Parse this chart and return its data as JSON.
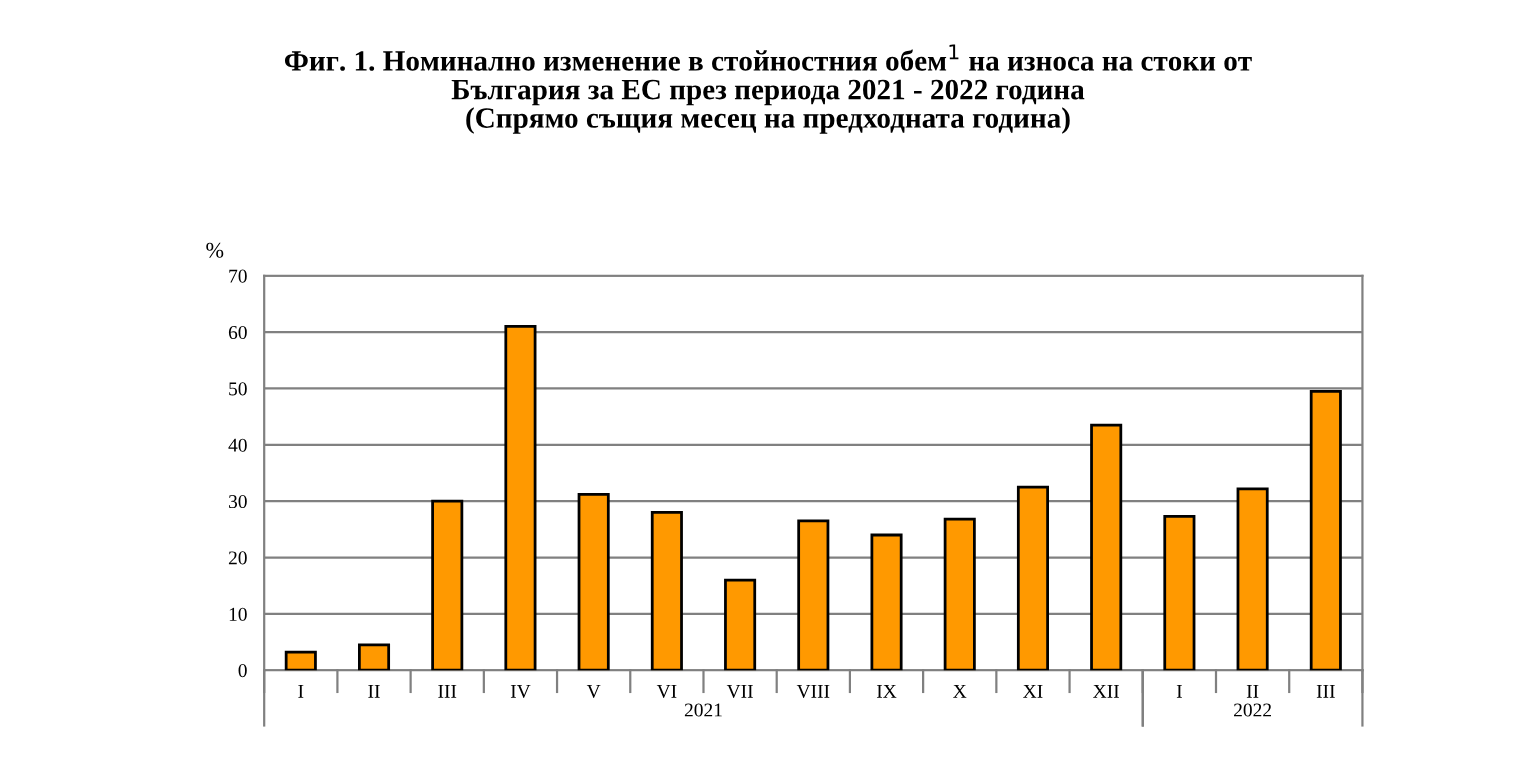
{
  "chart_data": {
    "type": "bar",
    "title": "Фиг. 1. Номинално изменение в стойностния обем$^{1}$ на износа на стоки от\nБългария за ЕС през периода 2021 - 2022 година\n(Спрямо същия месец на предходната година)",
    "ylabel": "%",
    "categories": [
      "I",
      "II",
      "III",
      "IV",
      "V",
      "VI",
      "VII",
      "VIII",
      "IX",
      "X",
      "XI",
      "XII",
      "I",
      "II",
      "III"
    ],
    "series": [
      {
        "color": "#ff9900",
        "values": [
          3.2,
          4.5,
          30,
          61,
          31.2,
          28,
          16,
          26.5,
          24,
          26.8,
          32.5,
          43.5,
          27.3,
          32.2,
          49.5
        ]
      }
    ],
    "annotations": [
      "2021",
      "2022"
    ],
    "ylim": [
      0,
      70
    ],
    "yticks": [
      0,
      10,
      20,
      30,
      40,
      50,
      60,
      70
    ],
    "grid": "y",
    "legend": false
  }
}
